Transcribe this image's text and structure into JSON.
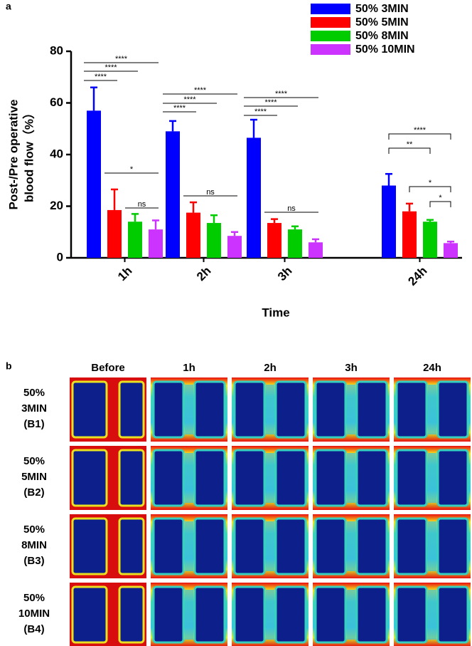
{
  "panel_a_label": "a",
  "panel_b_label": "b",
  "chart_data": {
    "type": "bar",
    "ylabel": [
      "Post-/Pre operative",
      "blood flow（%）"
    ],
    "xlabel": "Time",
    "categories": [
      "1h",
      "2h",
      "3h",
      "24h"
    ],
    "ylim": [
      0,
      80
    ],
    "yticks": [
      0,
      20,
      40,
      60,
      80
    ],
    "series": [
      {
        "name": "50% 3MIN",
        "color": "#0000ff",
        "values": [
          57,
          49,
          46.5,
          28
        ],
        "errors": [
          9,
          4,
          7,
          4.5
        ]
      },
      {
        "name": "50% 5MIN",
        "color": "#ff0000",
        "values": [
          18.5,
          17.5,
          13.5,
          18
        ],
        "errors": [
          8,
          4,
          1.5,
          3
        ]
      },
      {
        "name": "50% 8MIN",
        "color": "#00cc00",
        "values": [
          14,
          13.5,
          11,
          14
        ],
        "errors": [
          3,
          3,
          1.2,
          0.7
        ]
      },
      {
        "name": "50% 10MIN",
        "color": "#cc33ff",
        "values": [
          11,
          8.5,
          6,
          5.7
        ],
        "errors": [
          3.5,
          1.5,
          1.2,
          0.6
        ]
      }
    ],
    "significance": [
      [
        "****",
        "****",
        "****",
        "*",
        "ns"
      ],
      [
        "****",
        "****",
        "****",
        "ns"
      ],
      [
        "****",
        "****",
        "****",
        "ns"
      ],
      [
        "****",
        "**",
        "*",
        "*"
      ]
    ]
  },
  "image_grid": {
    "columns": [
      "Before",
      "1h",
      "2h",
      "3h",
      "24h"
    ],
    "rows": [
      [
        "50%",
        "3MIN",
        "(B1)"
      ],
      [
        "50%",
        "5MIN",
        "(B2)"
      ],
      [
        "50%",
        "8MIN",
        "(B3)"
      ],
      [
        "50%",
        "10MIN",
        "(B4)"
      ]
    ]
  }
}
